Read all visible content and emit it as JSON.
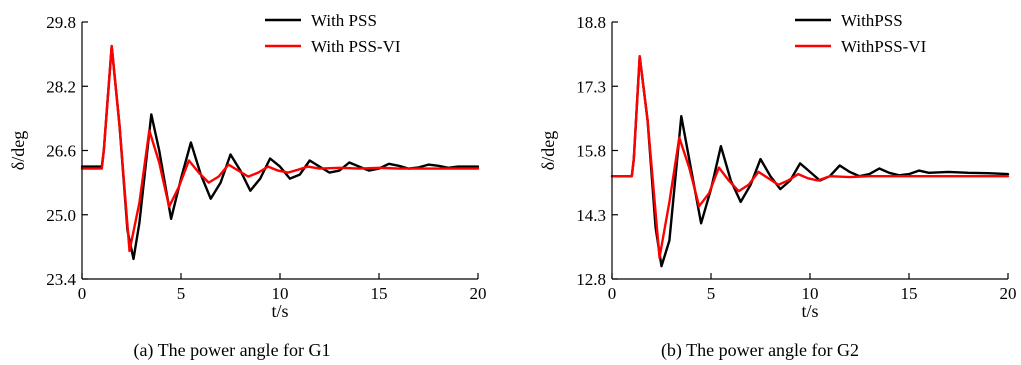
{
  "chart_data": [
    {
      "type": "line",
      "caption": "(a) The power angle for G1",
      "xlabel": "t/s",
      "ylabel": "δ/deg",
      "xlim": [
        0,
        20
      ],
      "ylim": [
        23.4,
        29.8
      ],
      "xticks": [
        0,
        5,
        10,
        15,
        20
      ],
      "yticks": [
        23.4,
        25.0,
        26.6,
        28.2,
        29.8
      ],
      "ytick_labels": [
        "23.4",
        "25.0",
        "26.6",
        "28.2",
        "29.8"
      ],
      "legend_position": "top-right",
      "series": [
        {
          "name": "With PSS",
          "color": "#000000",
          "x": [
            0,
            1.0,
            1.1,
            1.5,
            1.9,
            2.3,
            2.6,
            2.9,
            3.5,
            3.9,
            4.5,
            5.0,
            5.5,
            6.0,
            6.5,
            7.0,
            7.5,
            8.0,
            8.5,
            9.0,
            9.5,
            10.0,
            10.5,
            11.0,
            11.5,
            12.0,
            12.5,
            13.0,
            13.5,
            14.0,
            14.5,
            15.0,
            15.5,
            16.0,
            16.5,
            17.0,
            17.5,
            18.0,
            18.5,
            19.0,
            20.0
          ],
          "y": [
            26.2,
            26.2,
            26.6,
            29.2,
            27.2,
            24.6,
            23.9,
            24.8,
            27.5,
            26.6,
            24.9,
            25.9,
            26.8,
            26.0,
            25.4,
            25.8,
            26.5,
            26.1,
            25.6,
            25.9,
            26.4,
            26.2,
            25.9,
            26.0,
            26.35,
            26.2,
            26.05,
            26.1,
            26.3,
            26.2,
            26.1,
            26.15,
            26.27,
            26.22,
            26.15,
            26.18,
            26.25,
            26.22,
            26.17,
            26.2,
            26.2
          ]
        },
        {
          "name": "With PSS-VI",
          "color": "#ff0000",
          "x": [
            0,
            1.0,
            1.1,
            1.5,
            1.9,
            2.4,
            2.9,
            3.4,
            3.9,
            4.4,
            4.9,
            5.4,
            5.9,
            6.4,
            6.9,
            7.4,
            7.9,
            8.4,
            8.9,
            9.4,
            9.9,
            10.4,
            10.9,
            11.4,
            12.0,
            13.0,
            14.0,
            15.0,
            16.0,
            17.0,
            18.0,
            20.0
          ],
          "y": [
            26.15,
            26.15,
            26.6,
            29.2,
            27.2,
            24.1,
            25.3,
            27.1,
            26.3,
            25.2,
            25.7,
            26.35,
            26.05,
            25.8,
            25.95,
            26.25,
            26.1,
            25.95,
            26.05,
            26.2,
            26.1,
            26.05,
            26.12,
            26.2,
            26.15,
            26.17,
            26.15,
            26.17,
            26.15,
            26.15,
            26.15,
            26.15
          ]
        }
      ]
    },
    {
      "type": "line",
      "caption": "(b) The power angle for G2",
      "xlabel": "t/s",
      "ylabel": "δ/deg",
      "xlim": [
        0,
        20
      ],
      "ylim": [
        12.8,
        18.8
      ],
      "xticks": [
        0,
        5,
        10,
        15,
        20
      ],
      "yticks": [
        12.8,
        14.3,
        15.8,
        17.3,
        18.8
      ],
      "ytick_labels": [
        "12.8",
        "14.3",
        "15.8",
        "17.3",
        "18.8"
      ],
      "legend_position": "top-right",
      "series": [
        {
          "name": "WithPSS",
          "color": "#000000",
          "x": [
            0,
            1.0,
            1.1,
            1.4,
            1.8,
            2.2,
            2.5,
            2.9,
            3.5,
            3.9,
            4.5,
            5.0,
            5.5,
            6.0,
            6.5,
            7.0,
            7.5,
            8.0,
            8.5,
            9.0,
            9.5,
            10.0,
            10.5,
            11.0,
            11.5,
            12.0,
            12.5,
            13.0,
            13.5,
            14.0,
            14.5,
            15.0,
            15.5,
            16.0,
            17.0,
            18.0,
            19.0,
            20.0
          ],
          "y": [
            15.2,
            15.2,
            15.6,
            18.0,
            16.5,
            14.0,
            13.1,
            13.7,
            16.6,
            15.6,
            14.1,
            14.9,
            15.9,
            15.1,
            14.6,
            15.0,
            15.6,
            15.2,
            14.9,
            15.1,
            15.5,
            15.3,
            15.1,
            15.2,
            15.45,
            15.3,
            15.2,
            15.25,
            15.38,
            15.28,
            15.22,
            15.25,
            15.33,
            15.28,
            15.3,
            15.28,
            15.27,
            15.25
          ]
        },
        {
          "name": "WithPSS-VI",
          "color": "#ff0000",
          "x": [
            0,
            1.0,
            1.1,
            1.4,
            1.8,
            2.4,
            2.9,
            3.4,
            3.9,
            4.4,
            4.9,
            5.4,
            5.9,
            6.4,
            6.9,
            7.4,
            7.9,
            8.4,
            8.9,
            9.4,
            9.9,
            10.4,
            11.0,
            12.0,
            13.0,
            14.0,
            15.0,
            17.0,
            20.0
          ],
          "y": [
            15.2,
            15.2,
            15.6,
            18.0,
            16.5,
            13.3,
            14.6,
            16.1,
            15.4,
            14.5,
            14.8,
            15.4,
            15.1,
            14.85,
            15.0,
            15.3,
            15.15,
            15.0,
            15.1,
            15.25,
            15.15,
            15.1,
            15.2,
            15.18,
            15.2,
            15.2,
            15.2,
            15.2,
            15.2
          ]
        }
      ]
    }
  ]
}
